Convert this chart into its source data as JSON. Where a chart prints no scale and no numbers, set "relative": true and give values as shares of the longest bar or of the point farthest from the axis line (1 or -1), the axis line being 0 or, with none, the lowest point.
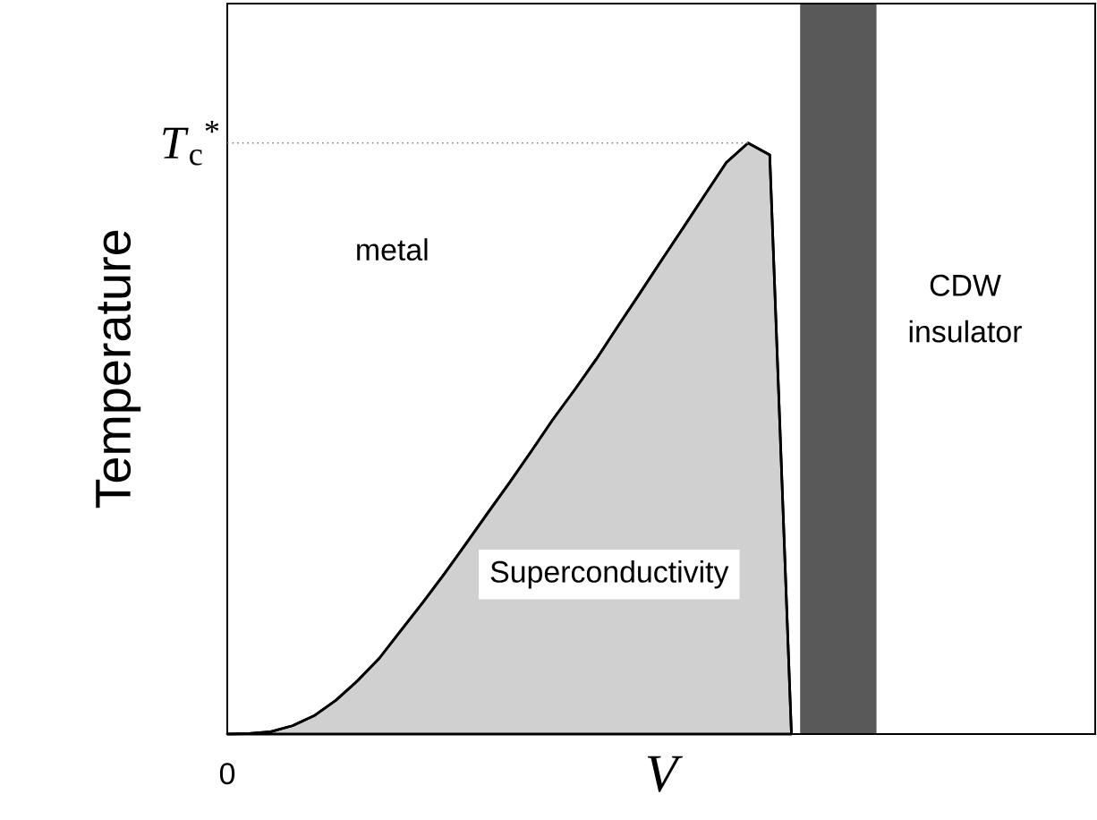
{
  "chart_data": {
    "type": "area",
    "xlabel": "V",
    "ylabel": "Temperature",
    "relative": true,
    "color": "#d0d0d0",
    "categories": [
      null,
      null,
      null,
      null,
      null,
      null,
      null,
      null,
      null,
      null,
      null,
      null,
      null,
      null,
      null,
      null,
      null,
      null,
      null,
      null,
      null,
      null,
      null,
      null,
      null,
      null,
      null
    ],
    "values": [
      0,
      0.001,
      0.004,
      0.014,
      0.031,
      0.057,
      0.09,
      0.128,
      0.175,
      0.222,
      0.271,
      0.322,
      0.374,
      0.425,
      0.478,
      0.532,
      0.582,
      0.634,
      0.69,
      0.745,
      0.801,
      0.856,
      0.912,
      0.967,
      1,
      0.98,
      0
    ],
    "ref_lines": [
      {
        "axis": "y",
        "value": 1,
        "label": "*T*$_{c}$$^{*}$",
        "line_style": "dotted"
      }
    ],
    "annotations": [
      "metal",
      "CDW insulator",
      "Superconductivity",
      "0"
    ]
  }
}
